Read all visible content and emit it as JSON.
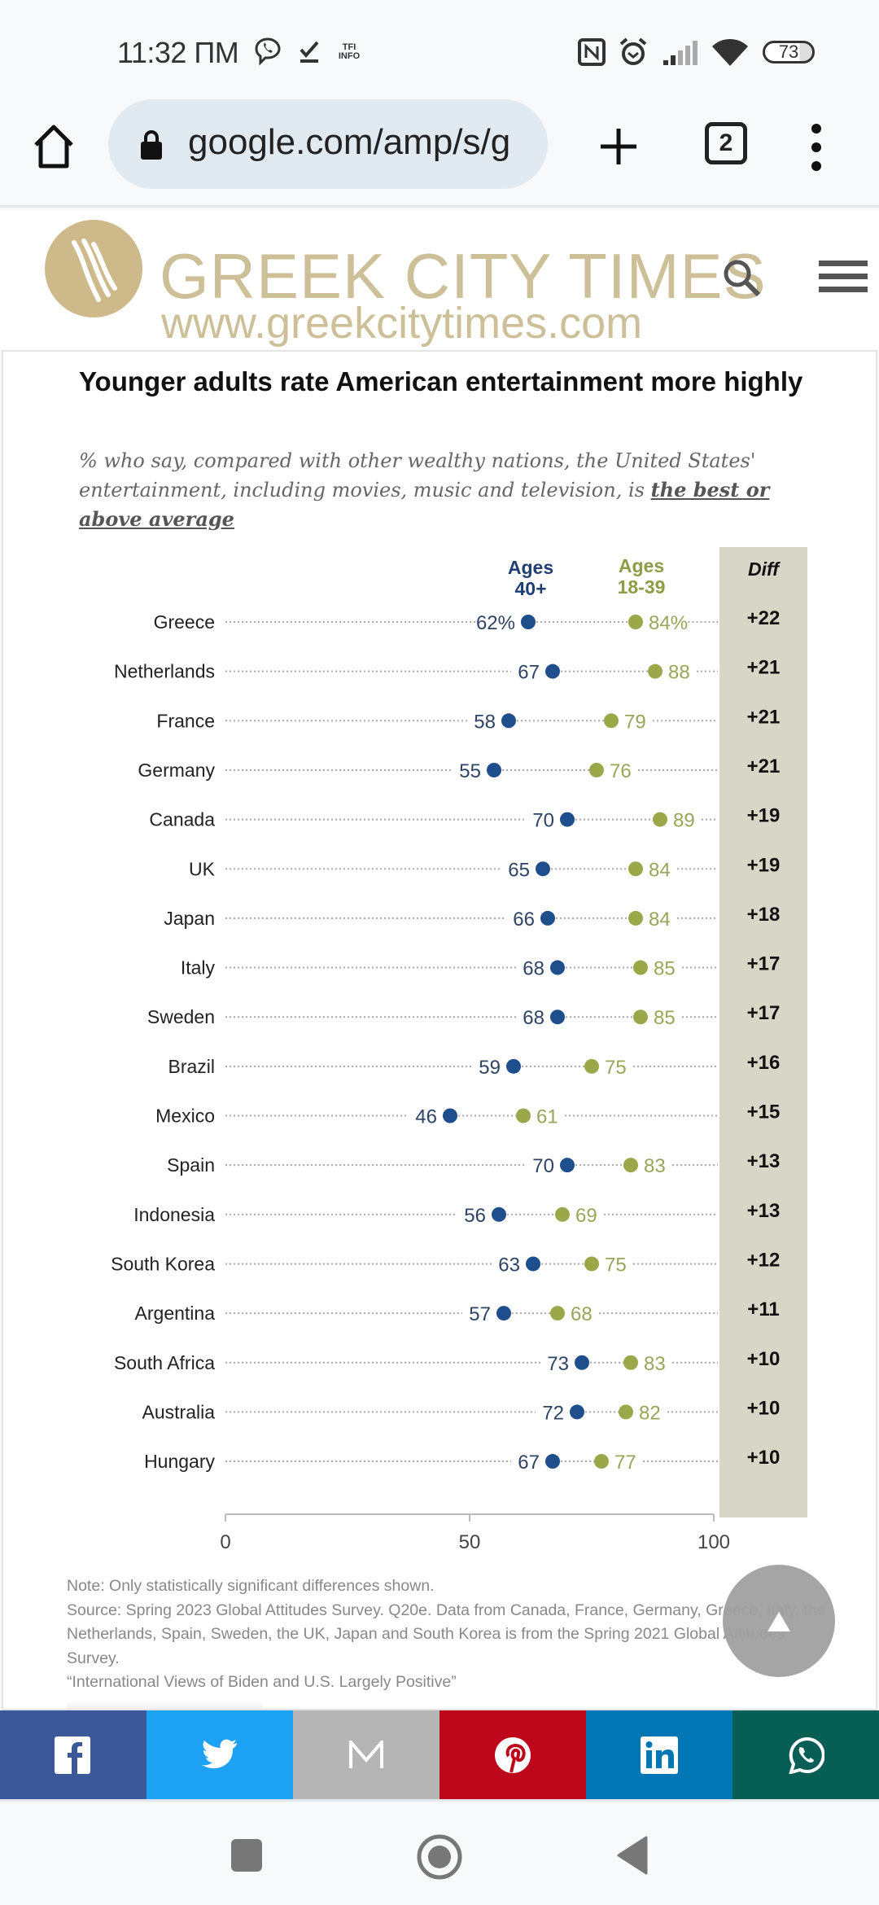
{
  "status_bar": {
    "time": "11:32 ПМ",
    "notification_icons": [
      "viber-icon",
      "download-done-icon",
      "tfi-info-icon"
    ],
    "system_icons": [
      "nfc-icon",
      "alarm-icon",
      "signal-icon",
      "wifi-icon",
      "battery-icon"
    ],
    "battery_level": "73"
  },
  "browser": {
    "url": "google.com/amp/s/g",
    "tab_count": "2"
  },
  "site": {
    "logo_title": "GREEK CITY TIMES",
    "logo_url": "www.greekcitytimes.com"
  },
  "chart_data": {
    "type": "scatter",
    "subtype": "dot-plot",
    "title": "Younger adults rate American entertainment more highly",
    "subtitle_prefix": "% who say, compared with other wealthy nations, the United States' entertainment, including movies, music and television, is ",
    "subtitle_emphasis": "the best or above average",
    "series_labels": {
      "old": "Ages 40+",
      "old_line1": "Ages",
      "old_line2": "40+",
      "young": "Ages 18-39",
      "young_line1": "Ages",
      "young_line2": "18-39",
      "diff": "Diff"
    },
    "colors": {
      "old": "#1f4e8c",
      "young": "#9aa84a",
      "diff_bg": "#d8d6c6"
    },
    "xlim": [
      0,
      100
    ],
    "xticks": [
      0,
      50,
      100
    ],
    "first_row_suffix": "%",
    "categories": [
      "Greece",
      "Netherlands",
      "France",
      "Germany",
      "Canada",
      "UK",
      "Japan",
      "Italy",
      "Sweden",
      "Brazil",
      "Mexico",
      "Spain",
      "Indonesia",
      "South Korea",
      "Argentina",
      "South Africa",
      "Australia",
      "Hungary"
    ],
    "series": [
      {
        "name": "Ages 40+",
        "values": [
          62,
          67,
          58,
          55,
          70,
          65,
          66,
          68,
          68,
          59,
          46,
          70,
          56,
          63,
          57,
          73,
          72,
          67
        ]
      },
      {
        "name": "Ages 18-39",
        "values": [
          84,
          88,
          79,
          76,
          89,
          84,
          84,
          85,
          85,
          75,
          61,
          83,
          69,
          75,
          68,
          83,
          82,
          77
        ]
      }
    ],
    "diff": [
      "+22",
      "+21",
      "+21",
      "+21",
      "+19",
      "+19",
      "+18",
      "+17",
      "+17",
      "+16",
      "+15",
      "+13",
      "+13",
      "+12",
      "+11",
      "+10",
      "+10",
      "+10"
    ]
  },
  "notes": {
    "note": "Note: Only statistically significant differences shown.",
    "source": "Source: Spring 2023 Global Attitudes Survey. Q20e. Data from Canada, France, Germany, Greece, Italy, the Netherlands, Spain, Sweden, the UK, Japan and South Korea is from the Spring 2021 Global Attitudes Survey.",
    "report": "“International Views of Biden and U.S. Largely Positive”"
  },
  "share_bar": [
    {
      "name": "facebook",
      "color": "#3b5998"
    },
    {
      "name": "twitter",
      "color": "#1da1f2"
    },
    {
      "name": "gmail",
      "color": "#b5b5b5"
    },
    {
      "name": "pinterest",
      "color": "#bd081c"
    },
    {
      "name": "linkedin",
      "color": "#0077b5"
    },
    {
      "name": "whatsapp",
      "color": "#075e54"
    }
  ]
}
